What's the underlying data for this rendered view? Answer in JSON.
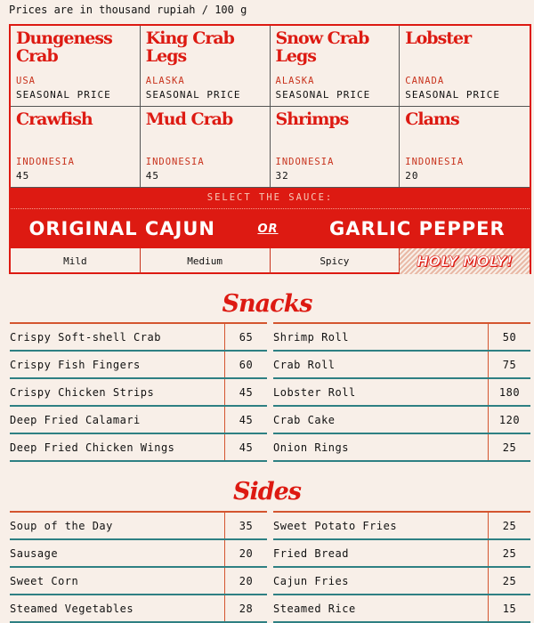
{
  "note": "Prices are in thousand rupiah / 100 g",
  "seafood": [
    {
      "name": "Dungeness Crab",
      "origin": "USA",
      "price": "SEASONAL PRICE"
    },
    {
      "name": "King Crab Legs",
      "origin": "ALASKA",
      "price": "SEASONAL PRICE"
    },
    {
      "name": "Snow Crab Legs",
      "origin": "ALASKA",
      "price": "SEASONAL PRICE"
    },
    {
      "name": "Lobster",
      "origin": "CANADA",
      "price": "SEASONAL PRICE"
    },
    {
      "name": "Crawfish",
      "origin": "INDONESIA",
      "price": "45"
    },
    {
      "name": "Mud Crab",
      "origin": "INDONESIA",
      "price": "45"
    },
    {
      "name": "Shrimps",
      "origin": "INDONESIA",
      "price": "32"
    },
    {
      "name": "Clams",
      "origin": "INDONESIA",
      "price": "20"
    }
  ],
  "sauce": {
    "label": "SELECT THE SAUCE:",
    "option1": "ORIGINAL CAJUN",
    "or": "OR",
    "option2": "GARLIC PEPPER"
  },
  "heat": [
    "Mild",
    "Medium",
    "Spicy",
    "HOLY MOLY!"
  ],
  "snacks": {
    "title": "Snacks",
    "left": [
      [
        "Crispy Soft-shell Crab",
        "65"
      ],
      [
        "Crispy Fish Fingers",
        "60"
      ],
      [
        "Crispy Chicken Strips",
        "45"
      ],
      [
        "Deep Fried Calamari",
        "45"
      ],
      [
        "Deep Fried Chicken Wings",
        "45"
      ]
    ],
    "right": [
      [
        "Shrimp Roll",
        "50"
      ],
      [
        "Crab Roll",
        "75"
      ],
      [
        "Lobster Roll",
        "180"
      ],
      [
        "Crab Cake",
        "120"
      ],
      [
        "Onion Rings",
        "25"
      ]
    ]
  },
  "sides": {
    "title": "Sides",
    "left": [
      [
        "Soup of the Day",
        "35"
      ],
      [
        "Sausage",
        "20"
      ],
      [
        "Sweet Corn",
        "20"
      ],
      [
        "Steamed Vegetables",
        "28"
      ]
    ],
    "right": [
      [
        "Sweet Potato Fries",
        "25"
      ],
      [
        "Fried Bread",
        "25"
      ],
      [
        "Cajun Fries",
        "25"
      ],
      [
        "Steamed Rice",
        "15"
      ]
    ]
  },
  "colors": {
    "accent": "#dd1a12",
    "background": "#f8efe8",
    "rule": "#2e8083"
  }
}
